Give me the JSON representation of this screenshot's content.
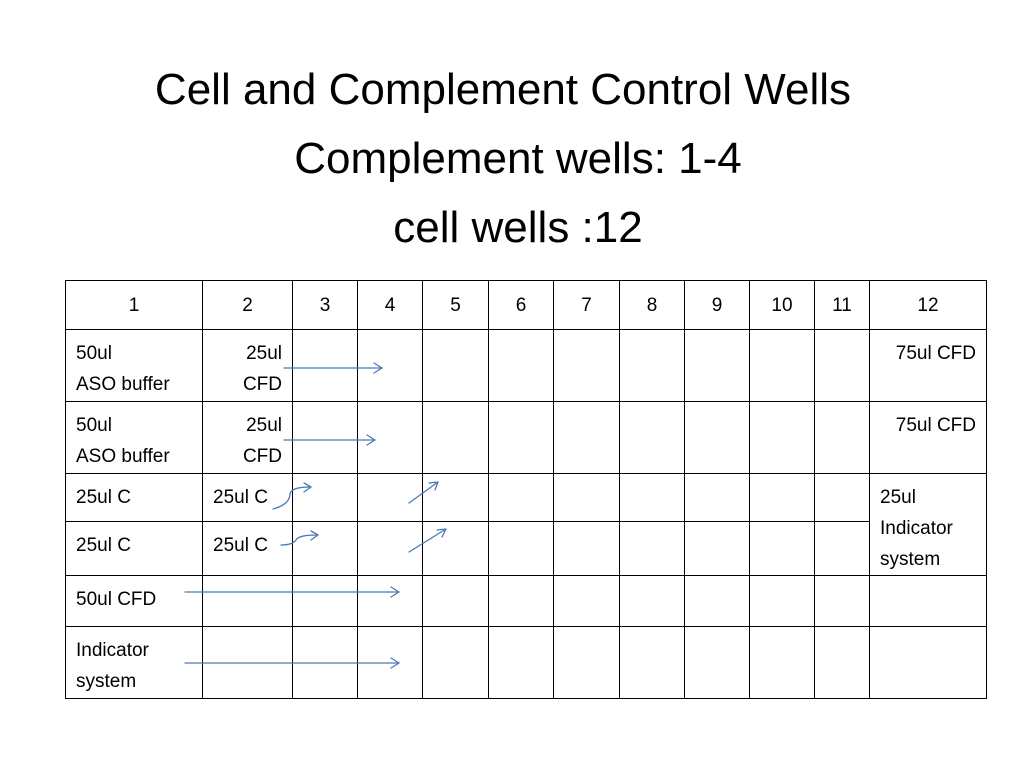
{
  "title": {
    "line1": "Cell and Complement Control Wells",
    "line2": "Complement wells: 1-4",
    "line3": "cell wells :12"
  },
  "table": {
    "headers": [
      "1",
      "2",
      "3",
      "4",
      "5",
      "6",
      "7",
      "8",
      "9",
      "10",
      "11",
      "12"
    ],
    "rows": [
      {
        "col1_l1": "50ul",
        "col1_l2": "ASO buffer",
        "col2_l1": "25ul",
        "col2_l2": "CFD",
        "col12": "75ul CFD"
      },
      {
        "col1_l1": "50ul",
        "col1_l2": "ASO buffer",
        "col2_l1": "25ul",
        "col2_l2": "CFD",
        "col12": "75ul CFD"
      },
      {
        "col1": "25ul C",
        "col2": "25ul C",
        "col12_l1": "25ul",
        "col12_l2": "Indicator",
        "col12_l3": "system"
      },
      {
        "col1": "25ul C",
        "col2": "25ul C"
      },
      {
        "col1": "50ul CFD"
      },
      {
        "col1_l1": "Indicator",
        "col1_l2": "system"
      }
    ]
  },
  "colors": {
    "arrow": "#4a7ab5",
    "border": "#000000",
    "background": "#ffffff"
  },
  "arrows": [
    {
      "name": "row1-straight-arrow",
      "shape": "straight"
    },
    {
      "name": "row2-straight-arrow",
      "shape": "straight"
    },
    {
      "name": "row3-curved-arrow",
      "shape": "curved"
    },
    {
      "name": "row3-diagonal-arrow",
      "shape": "diagonal"
    },
    {
      "name": "row4-curved-arrow",
      "shape": "curved"
    },
    {
      "name": "row4-diagonal-arrow",
      "shape": "diagonal"
    },
    {
      "name": "row5-straight-arrow",
      "shape": "straight"
    },
    {
      "name": "row6-straight-arrow",
      "shape": "straight"
    }
  ]
}
